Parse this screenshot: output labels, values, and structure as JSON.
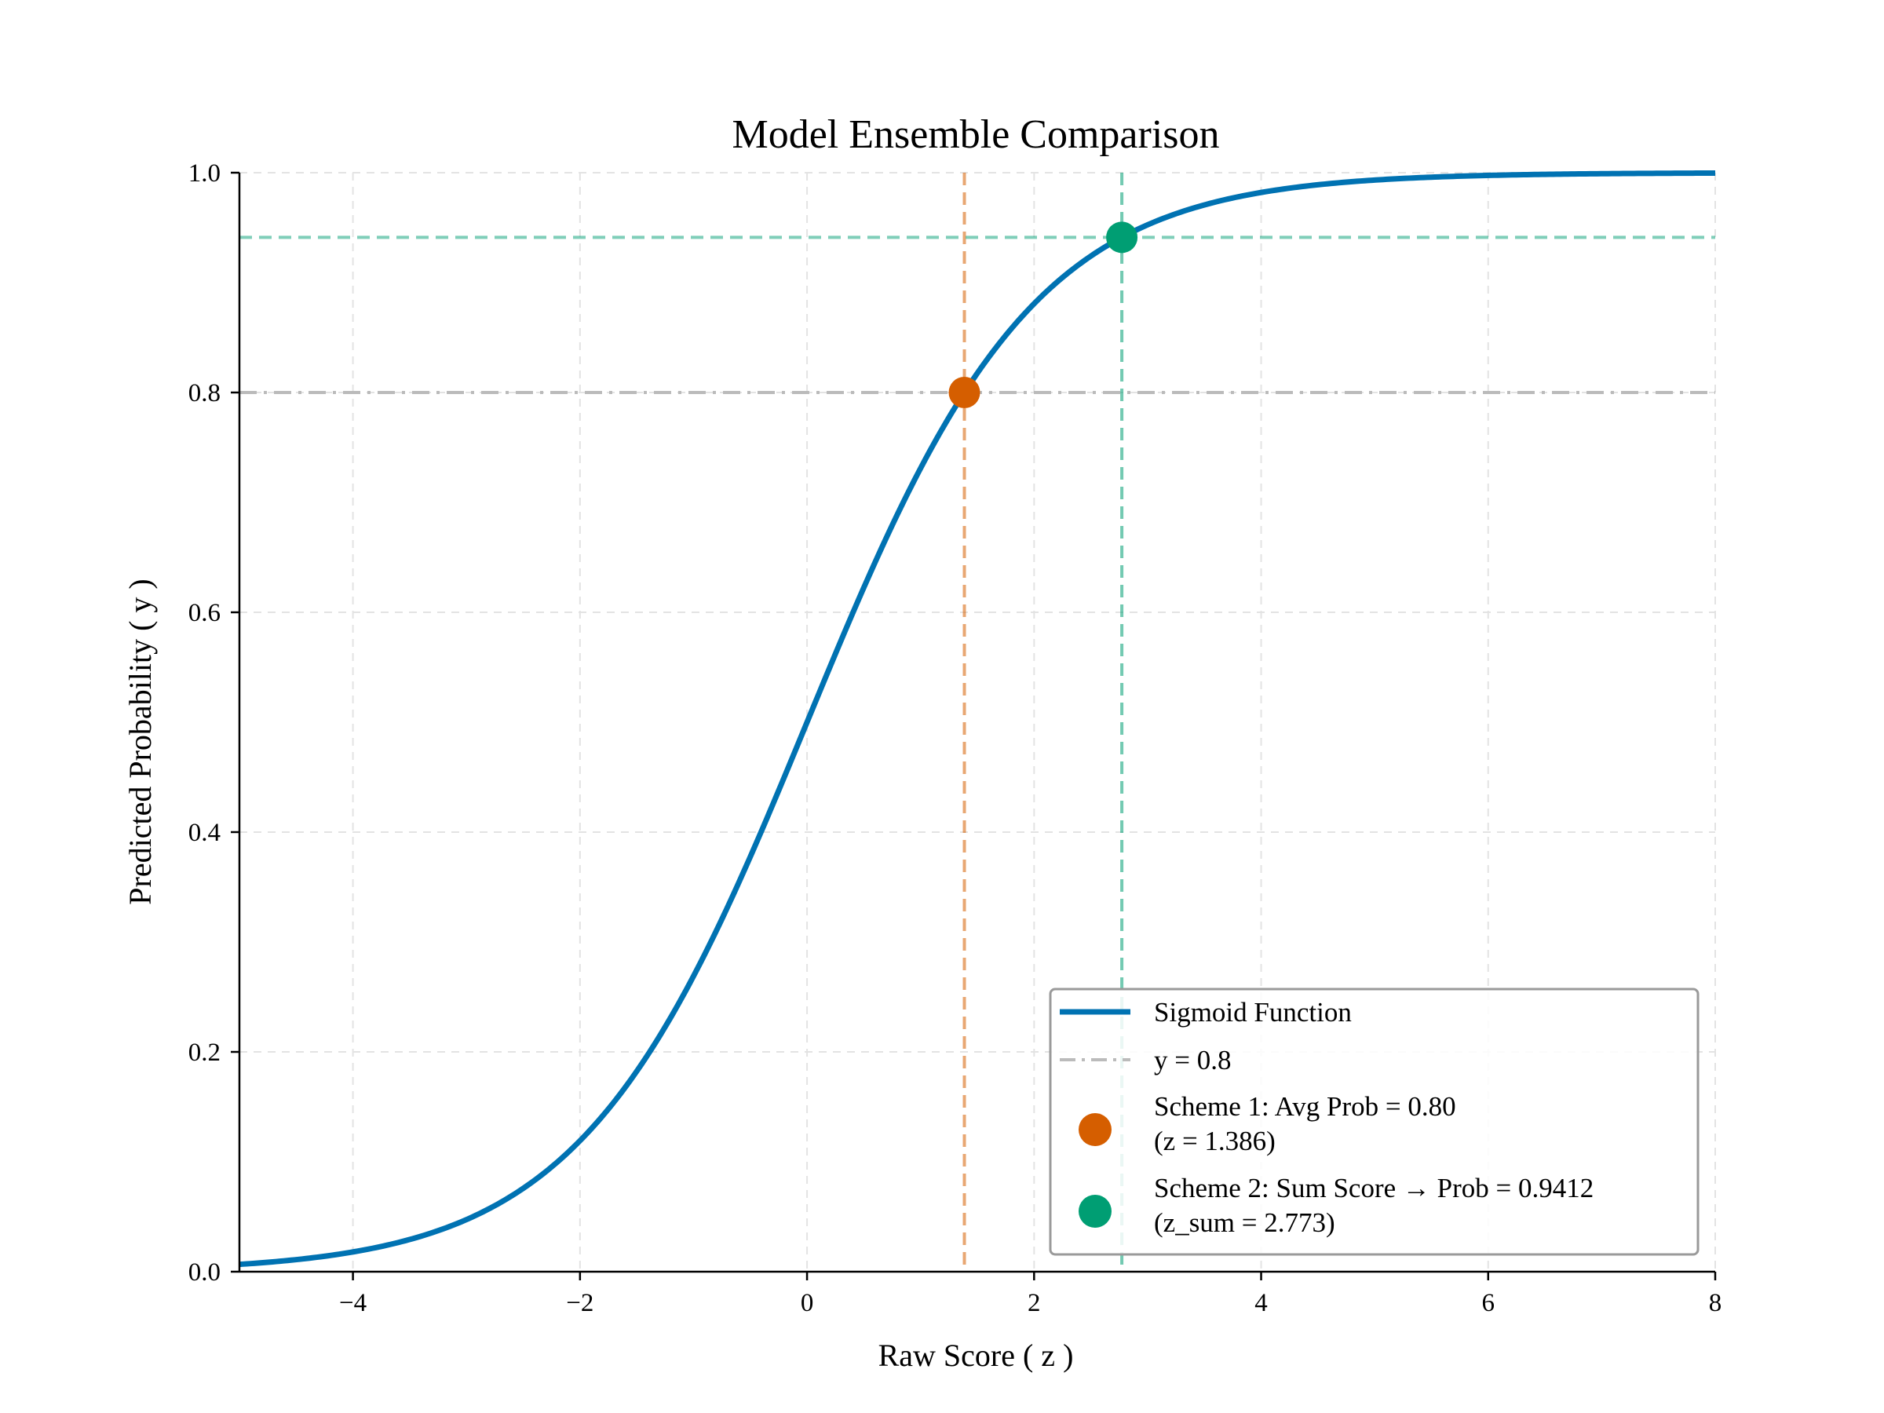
{
  "chart_data": {
    "type": "line",
    "title": "Model Ensemble Comparison",
    "xlabel": "Raw Score ( z )",
    "ylabel": "Predicted Probability ( y )",
    "xlim": [
      -5,
      8
    ],
    "ylim": [
      0,
      1
    ],
    "xticks": [
      -4,
      -2,
      0,
      2,
      4,
      6,
      8
    ],
    "xtick_labels": [
      "−4",
      "−2",
      "0",
      "2",
      "4",
      "6",
      "8"
    ],
    "yticks": [
      0,
      0.2,
      0.4,
      0.6,
      0.8,
      1.0
    ],
    "ytick_labels": [
      "0.0",
      "0.2",
      "0.4",
      "0.6",
      "0.8",
      "1.0"
    ],
    "grid": true,
    "legend_position": "lower-right",
    "colors": {
      "sigmoid": "#0072b2",
      "threshold": "#bbbbbb",
      "scheme1": "#d55e00",
      "scheme2": "#009e73",
      "grid": "#e3e3e3",
      "axis": "#000000"
    },
    "series": [
      {
        "name": "Sigmoid Function",
        "function": "sigmoid",
        "x_range": [
          -5,
          8
        ]
      }
    ],
    "reference_lines": [
      {
        "name": "y = 0.8",
        "orientation": "horizontal",
        "value": 0.8,
        "style": "dashdot"
      }
    ],
    "points": [
      {
        "name": "Scheme 1",
        "x": 1.386,
        "y": 0.8,
        "label_line1": "Scheme 1: Avg Prob = 0.80",
        "label_line2": "(z = 1.386)"
      },
      {
        "name": "Scheme 2",
        "x": 2.773,
        "y": 0.9412,
        "label_line1": "Scheme 2: Sum Score → Prob = 0.9412",
        "label_line2": "(z_sum = 2.773)"
      }
    ],
    "legend": {
      "sigmoid": "Sigmoid Function",
      "threshold": "y = 0.8",
      "scheme1_line1": "Scheme 1: Avg Prob = 0.80",
      "scheme1_line2": "(z = 1.386)",
      "scheme2_line1": "Scheme 2: Sum Score → Prob = 0.9412",
      "scheme2_line2": "(z_sum = 2.773)"
    }
  }
}
